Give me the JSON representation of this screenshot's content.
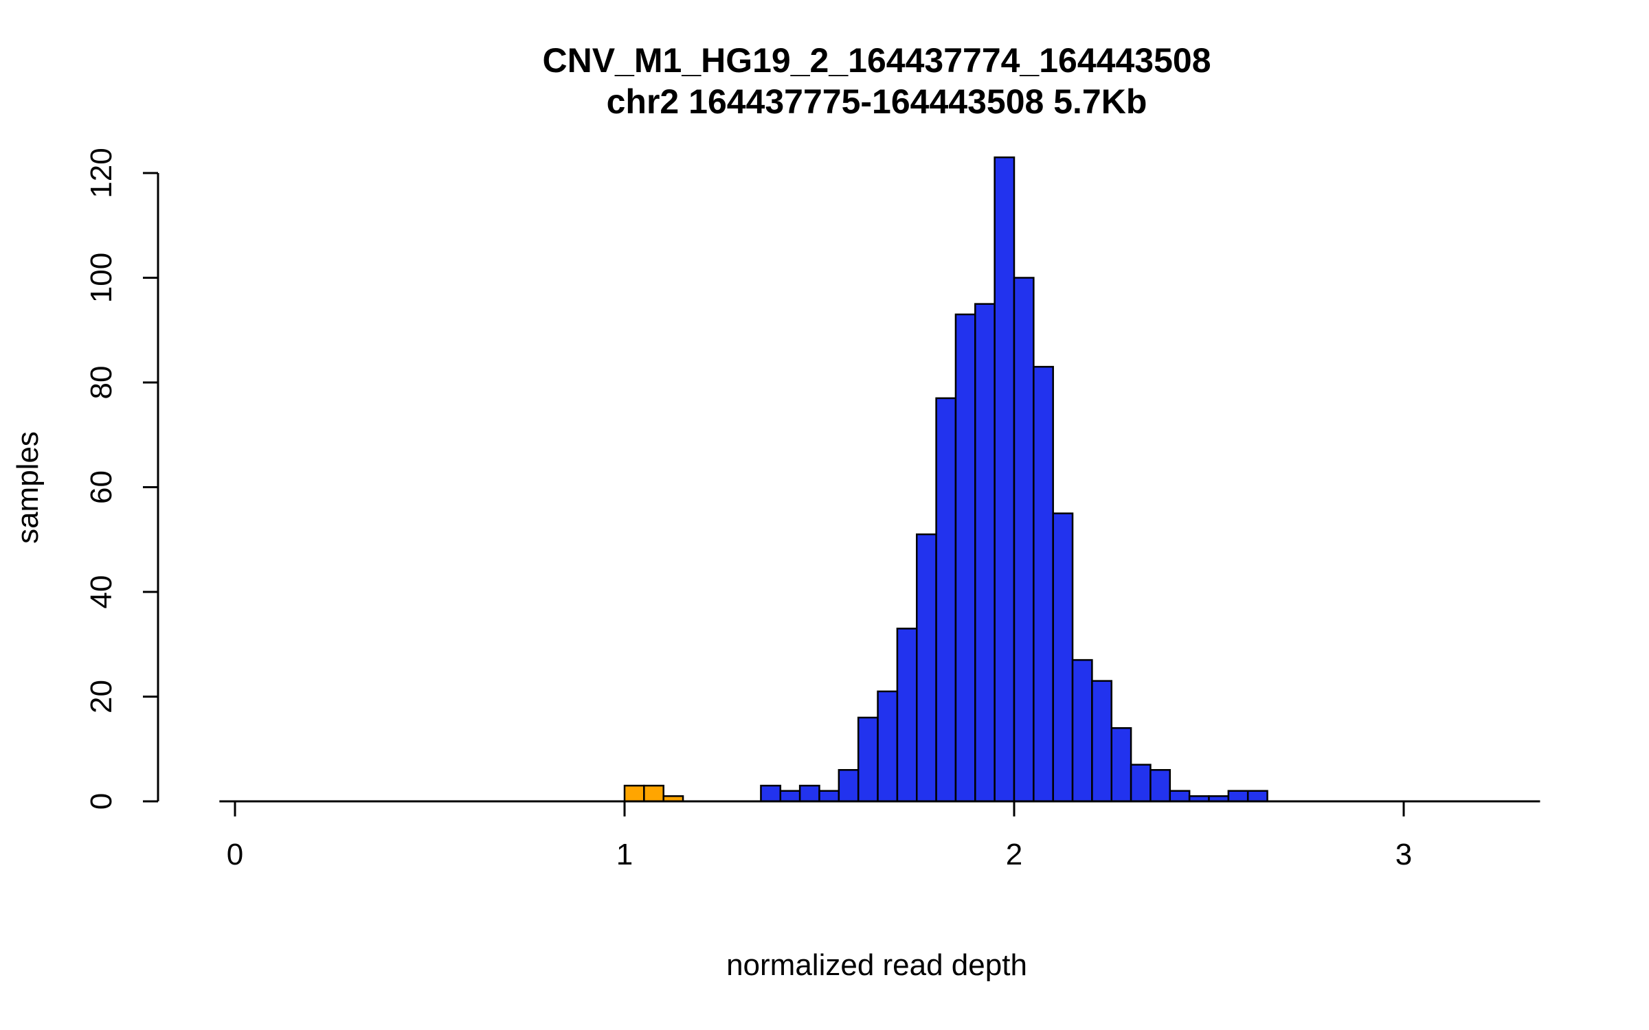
{
  "chart_data": {
    "type": "bar",
    "title": "CNV_M1_HG19_2_164437774_164443508",
    "subtitle": "chr2 164437775-164443508 5.7Kb",
    "xlabel": "normalized read depth",
    "ylabel": "samples",
    "x_ticks": [
      0,
      1,
      2,
      3
    ],
    "y_ticks": [
      0,
      20,
      40,
      60,
      80,
      100,
      120
    ],
    "xlim": [
      -0.04,
      3.35
    ],
    "ylim": [
      0,
      123
    ],
    "bin_width": 0.05,
    "grid": false,
    "legend": "none",
    "colors": {
      "default": "#2233EE",
      "highlight": "#FFA500",
      "stroke": "#000000",
      "axis": "#000000"
    },
    "bars": [
      {
        "x0": 1.0,
        "count": 3,
        "color": "highlight"
      },
      {
        "x0": 1.05,
        "count": 3,
        "color": "highlight"
      },
      {
        "x0": 1.1,
        "count": 1,
        "color": "highlight"
      },
      {
        "x0": 1.35,
        "count": 3,
        "color": "default"
      },
      {
        "x0": 1.4,
        "count": 2,
        "color": "default"
      },
      {
        "x0": 1.45,
        "count": 3,
        "color": "default"
      },
      {
        "x0": 1.5,
        "count": 2,
        "color": "default"
      },
      {
        "x0": 1.55,
        "count": 6,
        "color": "default"
      },
      {
        "x0": 1.6,
        "count": 16,
        "color": "default"
      },
      {
        "x0": 1.65,
        "count": 21,
        "color": "default"
      },
      {
        "x0": 1.7,
        "count": 33,
        "color": "default"
      },
      {
        "x0": 1.75,
        "count": 51,
        "color": "default"
      },
      {
        "x0": 1.8,
        "count": 77,
        "color": "default"
      },
      {
        "x0": 1.85,
        "count": 93,
        "color": "default"
      },
      {
        "x0": 1.9,
        "count": 95,
        "color": "default"
      },
      {
        "x0": 1.95,
        "count": 123,
        "color": "default"
      },
      {
        "x0": 2.0,
        "count": 100,
        "color": "default"
      },
      {
        "x0": 2.05,
        "count": 83,
        "color": "default"
      },
      {
        "x0": 2.1,
        "count": 55,
        "color": "default"
      },
      {
        "x0": 2.15,
        "count": 27,
        "color": "default"
      },
      {
        "x0": 2.2,
        "count": 23,
        "color": "default"
      },
      {
        "x0": 2.25,
        "count": 14,
        "color": "default"
      },
      {
        "x0": 2.3,
        "count": 7,
        "color": "default"
      },
      {
        "x0": 2.35,
        "count": 6,
        "color": "default"
      },
      {
        "x0": 2.4,
        "count": 2,
        "color": "default"
      },
      {
        "x0": 2.45,
        "count": 1,
        "color": "default"
      },
      {
        "x0": 2.5,
        "count": 1,
        "color": "default"
      },
      {
        "x0": 2.55,
        "count": 2,
        "color": "default"
      },
      {
        "x0": 2.6,
        "count": 2,
        "color": "default"
      }
    ]
  }
}
